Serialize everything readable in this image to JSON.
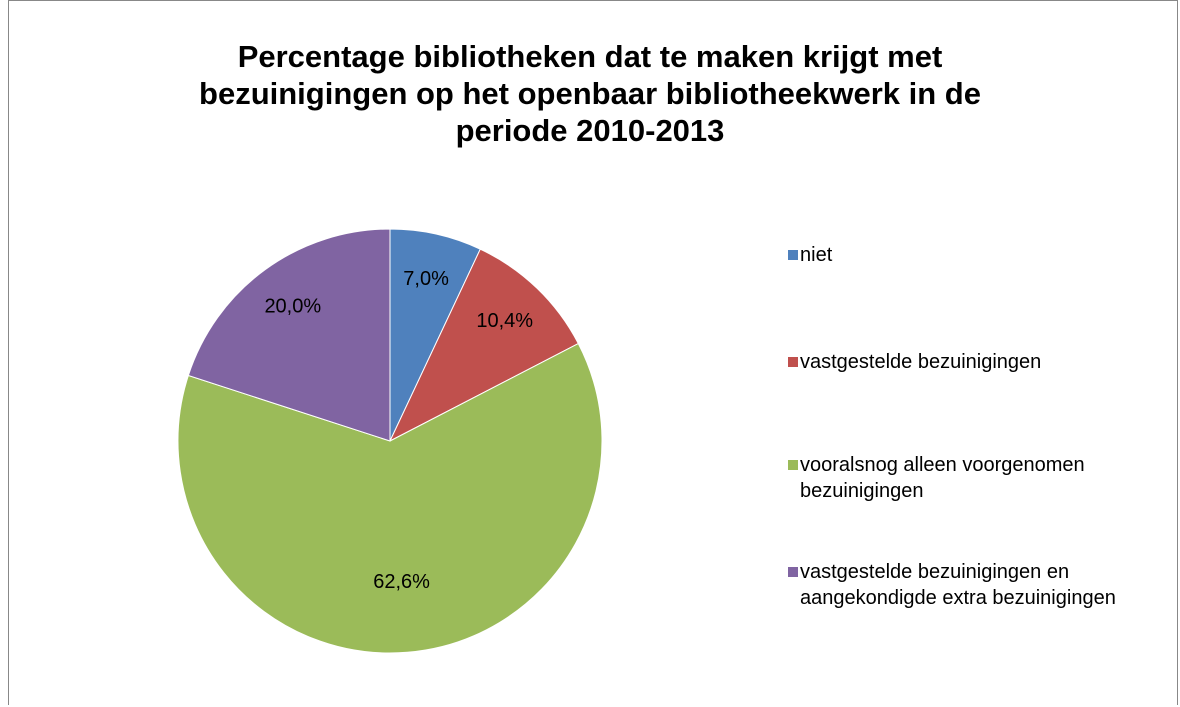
{
  "chart_data": {
    "type": "pie",
    "title": "Percentage bibliotheken dat te maken krijgt met bezuinigingen op het openbaar bibliotheekwerk in de periode 2010-2013",
    "categories": [
      "niet",
      "vastgestelde bezuinigingen",
      "vooralsnog alleen voorgenomen bezuinigingen",
      "vastgestelde bezuinigingen en aangekondigde extra bezuinigingen"
    ],
    "values": [
      7.0,
      10.4,
      62.6,
      20.0
    ],
    "value_labels": [
      "7,0%",
      "10,4%",
      "62,6%",
      "20,0%"
    ],
    "colors": [
      "#4f81bd",
      "#c0504d",
      "#9bbb59",
      "#8064a2"
    ],
    "legend": "right"
  }
}
